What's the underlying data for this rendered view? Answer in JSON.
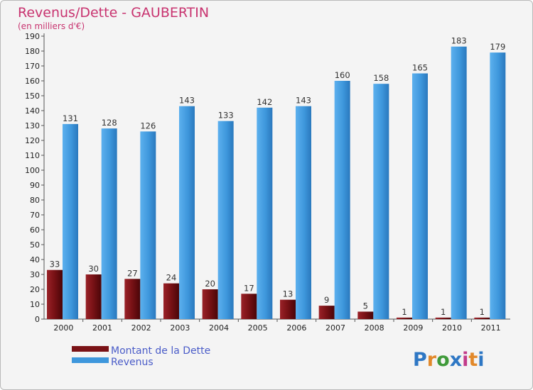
{
  "chart_data": {
    "type": "bar",
    "title": "Revenus/Dette - GAUBERTIN",
    "subtitle": "(en milliers d'€)",
    "categories": [
      "2000",
      "2001",
      "2002",
      "2003",
      "2004",
      "2005",
      "2006",
      "2007",
      "2008",
      "2009",
      "2010",
      "2011"
    ],
    "series": [
      {
        "name": "Montant de la Dette",
        "color": "#7a1216",
        "values": [
          33,
          30,
          27,
          24,
          20,
          17,
          13,
          9,
          5,
          1,
          1,
          1
        ]
      },
      {
        "name": "Revenus",
        "color": "#3e97dc",
        "values": [
          131,
          128,
          126,
          143,
          133,
          142,
          143,
          160,
          158,
          165,
          183,
          179
        ]
      }
    ],
    "ylim": [
      0,
      190
    ],
    "yticks": [
      0,
      10,
      20,
      30,
      40,
      50,
      60,
      70,
      80,
      90,
      100,
      110,
      120,
      130,
      140,
      150,
      160,
      170,
      180,
      190
    ],
    "grid": false,
    "legend_position": "bottom-left"
  },
  "logo": {
    "text": "Proxiti",
    "letter_colors": [
      "#2e77c4",
      "#e2892b",
      "#3f9a3a",
      "#2e77c4",
      "#c23b8a",
      "#e2892b",
      "#2e77c4"
    ]
  }
}
